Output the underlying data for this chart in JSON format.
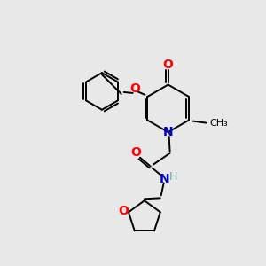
{
  "background_color": "#e8e8e8",
  "bond_color": "#000000",
  "atom_colors": {
    "O": "#ff0000",
    "N": "#0000cc",
    "H": "#70a0a0",
    "C": "#000000"
  },
  "figsize": [
    3.0,
    3.0
  ],
  "dpi": 100
}
